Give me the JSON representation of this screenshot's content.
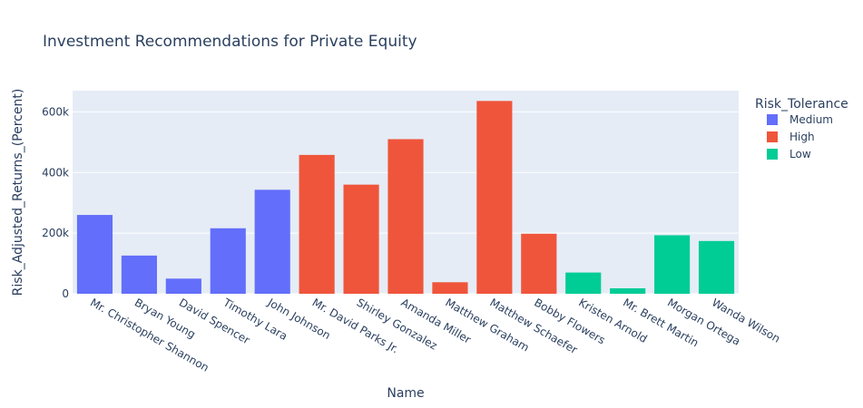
{
  "chart_data": {
    "type": "bar",
    "title": "Investment Recommendations for Private Equity",
    "xlabel": "Name",
    "ylabel": "Risk_Adjusted_Returns_(Percent)",
    "ylim": [
      0,
      670000
    ],
    "yticks": [
      0,
      200000,
      400000,
      600000
    ],
    "ytick_labels": [
      "0",
      "200k",
      "400k",
      "600k"
    ],
    "grid": true,
    "legend": {
      "title": "Risk_Tolerance",
      "placement": "right",
      "entries": [
        {
          "name": "Medium",
          "color": "#636efa"
        },
        {
          "name": "High",
          "color": "#ef553b"
        },
        {
          "name": "Low",
          "color": "#00cc96"
        }
      ]
    },
    "categories": [
      "Mr. Christopher Shannon",
      "Bryan Young",
      "David Spencer",
      "Timothy Lara",
      "John Johnson",
      "Mr. David Parks Jr.",
      "Shirley Gonzalez",
      "Amanda Miller",
      "Matthew Graham",
      "Matthew Schaefer",
      "Bobby Flowers",
      "Kristen Arnold",
      "Mr. Brett Martin",
      "Morgan Ortega",
      "Wanda Wilson"
    ],
    "series": [
      {
        "name": "Medium",
        "color": "#636efa",
        "values": [
          260000,
          126000,
          50000,
          216000,
          343000,
          null,
          null,
          null,
          null,
          null,
          null,
          null,
          null,
          null,
          null
        ]
      },
      {
        "name": "High",
        "color": "#ef553b",
        "values": [
          null,
          null,
          null,
          null,
          null,
          458000,
          360000,
          510000,
          38000,
          636000,
          198000,
          null,
          null,
          null,
          null
        ]
      },
      {
        "name": "Low",
        "color": "#00cc96",
        "values": [
          null,
          null,
          null,
          null,
          null,
          null,
          null,
          null,
          null,
          null,
          null,
          70000,
          18000,
          193000,
          174000
        ]
      }
    ]
  }
}
